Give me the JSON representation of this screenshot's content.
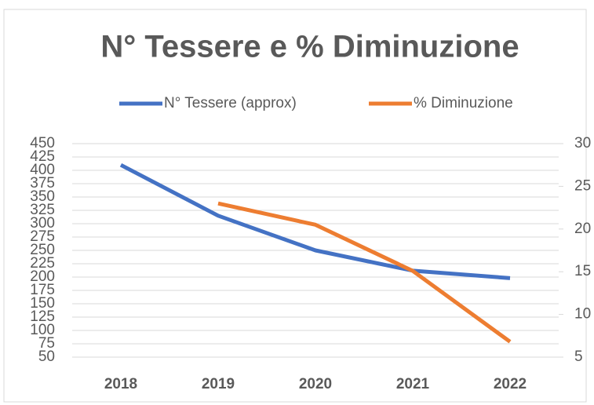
{
  "chart_data": {
    "type": "line",
    "title": "N° Tessere e % Diminuzione",
    "categories": [
      "2018",
      "2019",
      "2020",
      "2021",
      "2022"
    ],
    "series": [
      {
        "name": "N° Tessere (approx)",
        "color": "#4472c4",
        "values": [
          410,
          315,
          250,
          212,
          198
        ]
      },
      {
        "name": "% Diminuzione",
        "color": "#ed7d31",
        "axis": "y2",
        "values": [
          null,
          23.0,
          20.5,
          15.1,
          6.8
        ]
      }
    ],
    "ylim": [
      50,
      450
    ],
    "yticks": [
      50,
      75,
      100,
      125,
      150,
      175,
      200,
      225,
      250,
      275,
      300,
      325,
      350,
      375,
      400,
      425,
      450
    ],
    "y2lim": [
      5,
      30
    ],
    "y2ticks": [
      5,
      10,
      15,
      20,
      25,
      30
    ],
    "grid": true,
    "legend": "top"
  }
}
